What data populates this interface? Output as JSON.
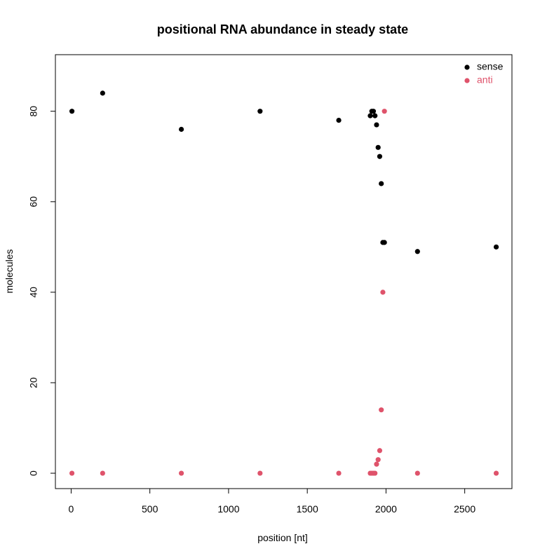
{
  "chart_data": {
    "type": "scatter",
    "title": "positional RNA abundance in steady state",
    "xlabel": "position [nt]",
    "ylabel": "molecules",
    "xlim": [
      -100,
      2800
    ],
    "ylim": [
      -3.4,
      92.5
    ],
    "xticks": [
      0,
      500,
      1000,
      1500,
      2000,
      2500
    ],
    "yticks": [
      0,
      20,
      40,
      60,
      80
    ],
    "legend_position": "top-right",
    "grid": false,
    "series": [
      {
        "name": "sense",
        "color": "#000000",
        "points": [
          [
            5,
            80
          ],
          [
            200,
            84
          ],
          [
            700,
            76
          ],
          [
            1200,
            80
          ],
          [
            1700,
            78
          ],
          [
            1900,
            79
          ],
          [
            1910,
            80
          ],
          [
            1920,
            80
          ],
          [
            1930,
            79
          ],
          [
            1940,
            77
          ],
          [
            1950,
            72
          ],
          [
            1960,
            70
          ],
          [
            1970,
            64
          ],
          [
            1980,
            51
          ],
          [
            1990,
            51
          ],
          [
            2200,
            49
          ],
          [
            2700,
            50
          ]
        ]
      },
      {
        "name": "anti",
        "color": "#DF536B",
        "points": [
          [
            5,
            0
          ],
          [
            200,
            0
          ],
          [
            700,
            0
          ],
          [
            1200,
            0
          ],
          [
            1700,
            0
          ],
          [
            1900,
            0
          ],
          [
            1910,
            0
          ],
          [
            1920,
            0
          ],
          [
            1930,
            0
          ],
          [
            1940,
            2
          ],
          [
            1950,
            3
          ],
          [
            1960,
            5
          ],
          [
            1970,
            14
          ],
          [
            1980,
            40
          ],
          [
            1990,
            80
          ],
          [
            2200,
            0
          ],
          [
            2700,
            0
          ]
        ]
      }
    ]
  }
}
